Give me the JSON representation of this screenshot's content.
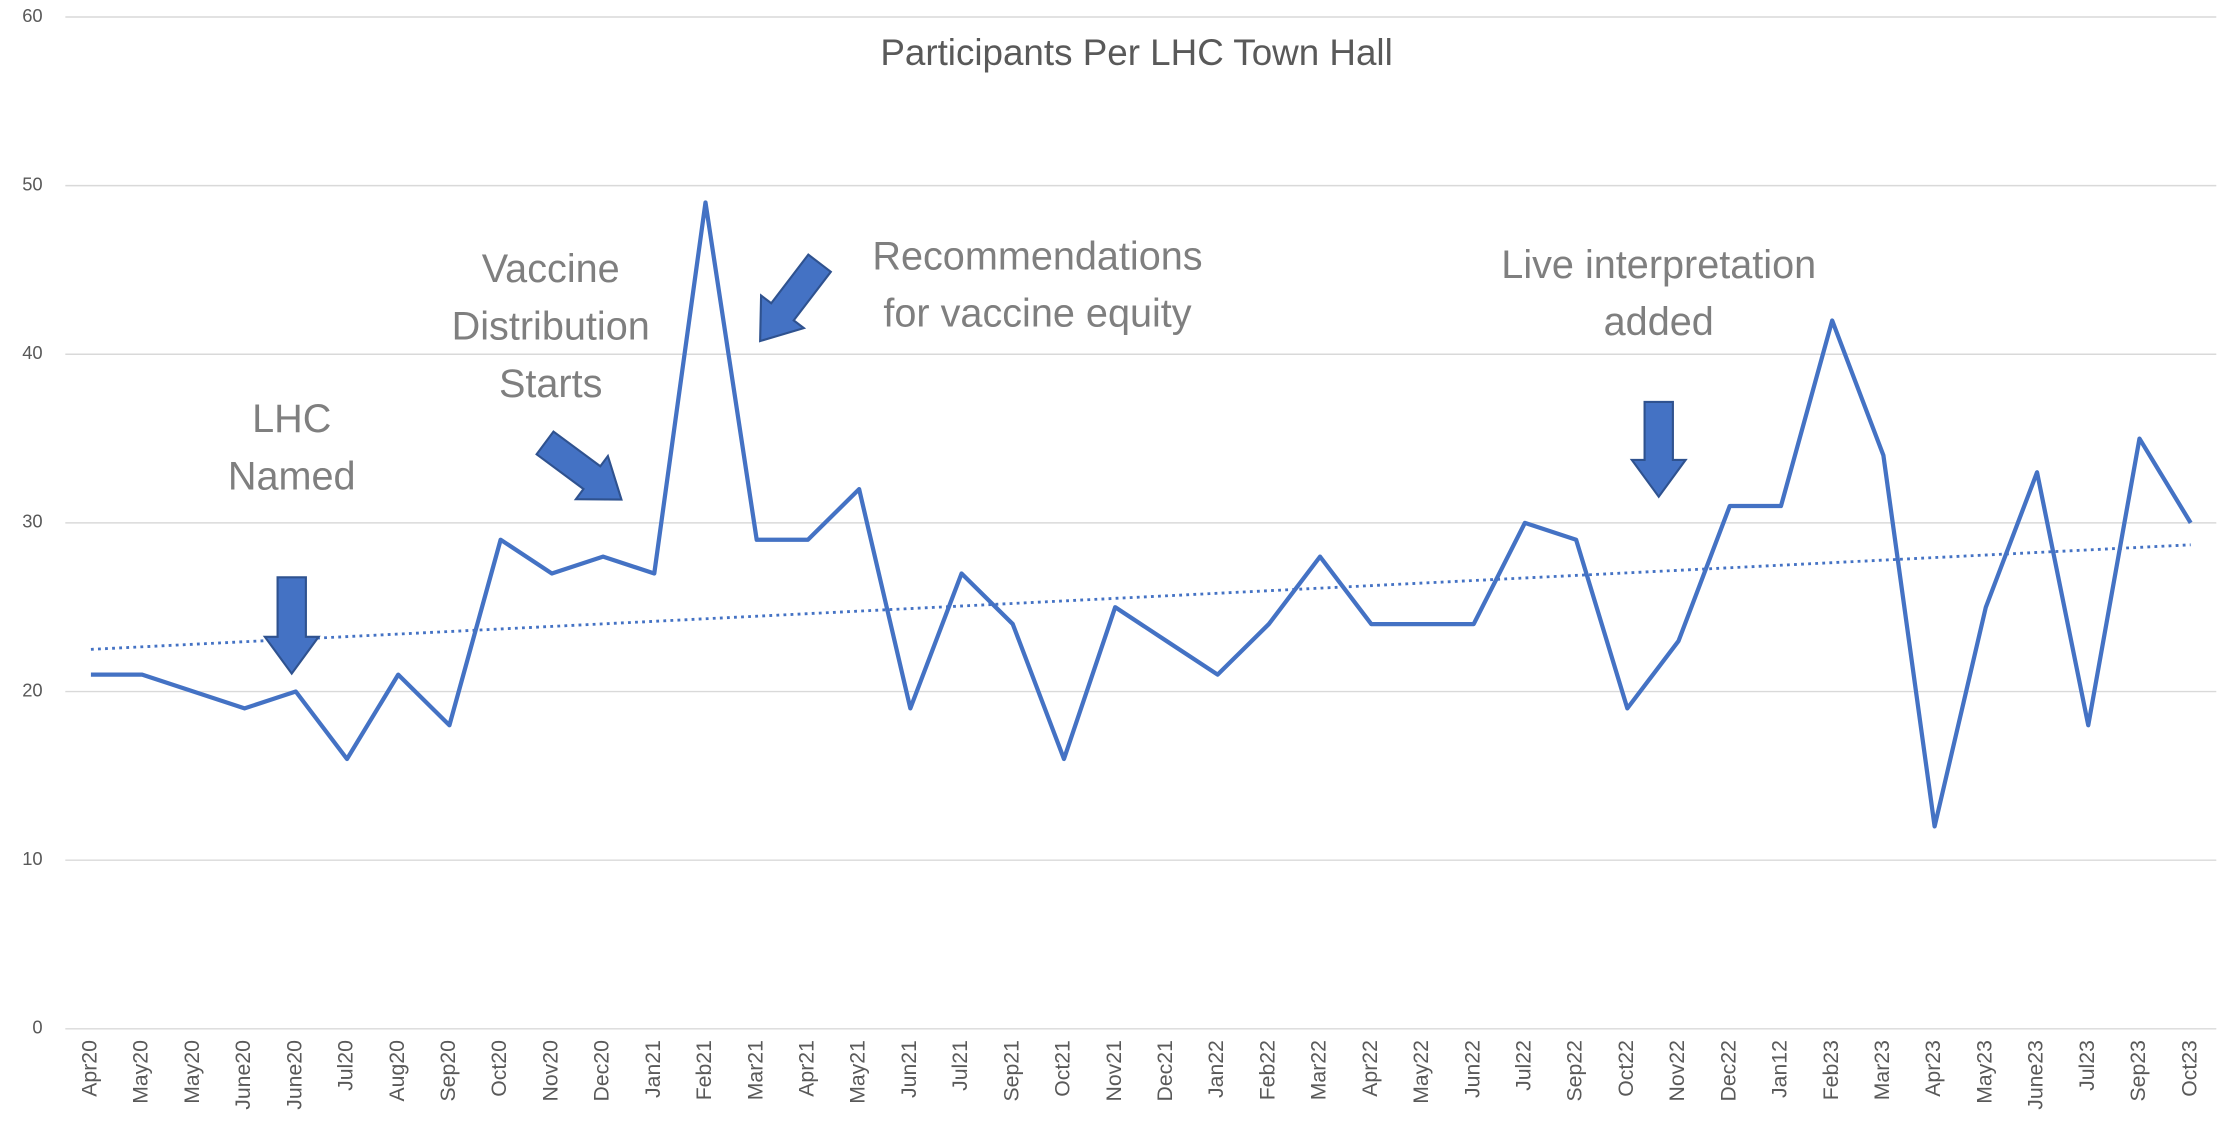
{
  "chart_data": {
    "type": "line",
    "title": "Participants Per LHC Town Hall",
    "categories": [
      "Apr20",
      "May20",
      "May20",
      "June20",
      "June20",
      "Jul20",
      "Aug20",
      "Sep20",
      "Oct20",
      "Nov20",
      "Dec20",
      "Jan21",
      "Feb21",
      "Mar21",
      "Apr21",
      "May21",
      "Jun21",
      "Jul21",
      "Sep21",
      "Oct21",
      "Nov21",
      "Dec21",
      "Jan22",
      "Feb22",
      "Mar22",
      "Apr22",
      "May22",
      "Jun22",
      "Jul22",
      "Sep22",
      "Oct22",
      "Nov22",
      "Dec22",
      "Jan12",
      "Feb23",
      "Mar23",
      "Apr23",
      "May23",
      "June23",
      "Jul23",
      "Sep23",
      "Oct23"
    ],
    "values": [
      21,
      21,
      20,
      19,
      20,
      16,
      21,
      18,
      29,
      27,
      28,
      27,
      49,
      29,
      29,
      32,
      19,
      27,
      24,
      16,
      25,
      23,
      21,
      24,
      28,
      24,
      24,
      24,
      30,
      29,
      19,
      23,
      31,
      31,
      42,
      34,
      12,
      25,
      33,
      18,
      35,
      30
    ],
    "color": "#4472c4",
    "trendline": [
      22.5,
      28.7
    ],
    "ylim": [
      0,
      60
    ],
    "yticks": [
      0,
      10,
      20,
      30,
      40,
      50,
      60
    ],
    "grid": true,
    "annotations": [
      {
        "lines": [
          "LHC",
          "Named"
        ]
      },
      {
        "lines": [
          "Vaccine",
          "Distribution",
          "Starts"
        ]
      },
      {
        "lines": [
          "Recommendations",
          "for vaccine equity"
        ]
      },
      {
        "lines": [
          "Live interpretation",
          "added"
        ]
      }
    ]
  }
}
